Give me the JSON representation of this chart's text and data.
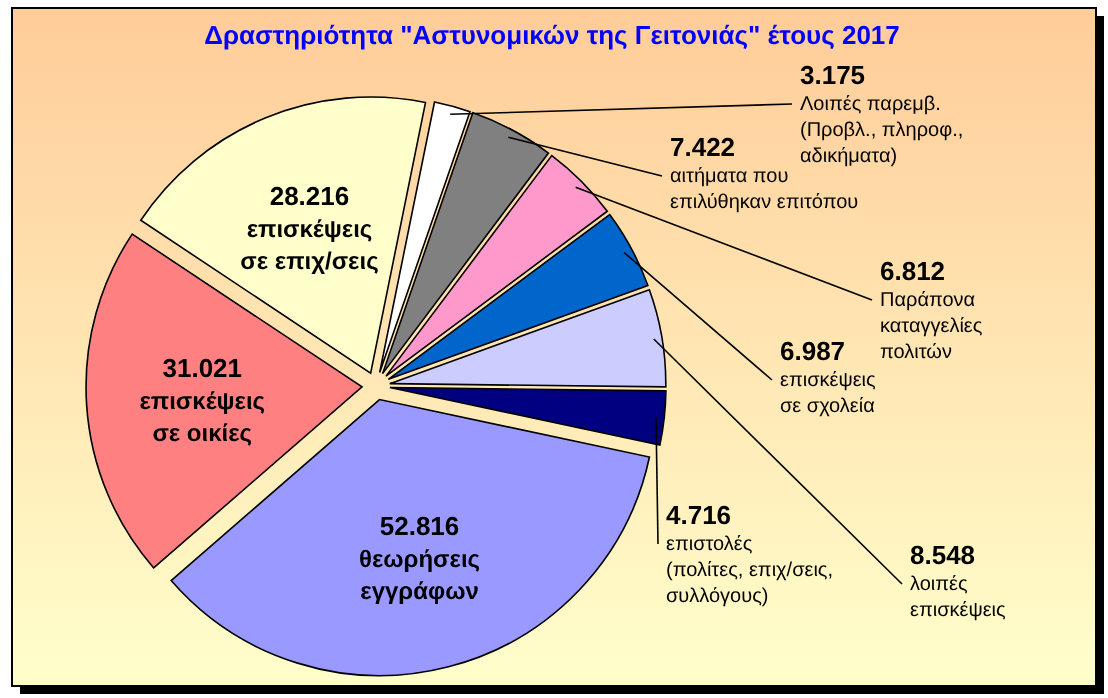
{
  "chart_data": {
    "type": "pie",
    "title": "Δραστηριότητα \"Αστυνομικών της Γειτονιάς\" έτους 2017",
    "categories": [
      "Λοιπές παρεμβ.\n(Προβλ., πληροφ.,\nαδικήματα)",
      "αιτήματα που\nεπιλύθηκαν επιτόπου",
      "Παράπονα\nκαταγγελίες\nπολιτών",
      "επισκέψεις\nσε σχολεία",
      "λοιπές\nεπισκέψεις",
      "επιστολές\n(πολίτες, επιχ/σεις,\nσυλλόγους)",
      "θεωρήσεις\nεγγράφων",
      "επισκέψεις\nσε οικίες",
      "επισκέψεις\nσε επιχ/σεις"
    ],
    "values": [
      3175,
      7422,
      6812,
      6987,
      8548,
      4716,
      52816,
      31021,
      28216
    ],
    "value_labels": [
      "3.175",
      "7.422",
      "6.812",
      "6.987",
      "8.548",
      "4.716",
      "52.816",
      "31.021",
      "28.216"
    ],
    "colors": [
      "#ffffff",
      "#808080",
      "#ff99cc",
      "#0066cc",
      "#ccccff",
      "#000080",
      "#9999ff",
      "#ff8080",
      "#ffffcc"
    ]
  }
}
